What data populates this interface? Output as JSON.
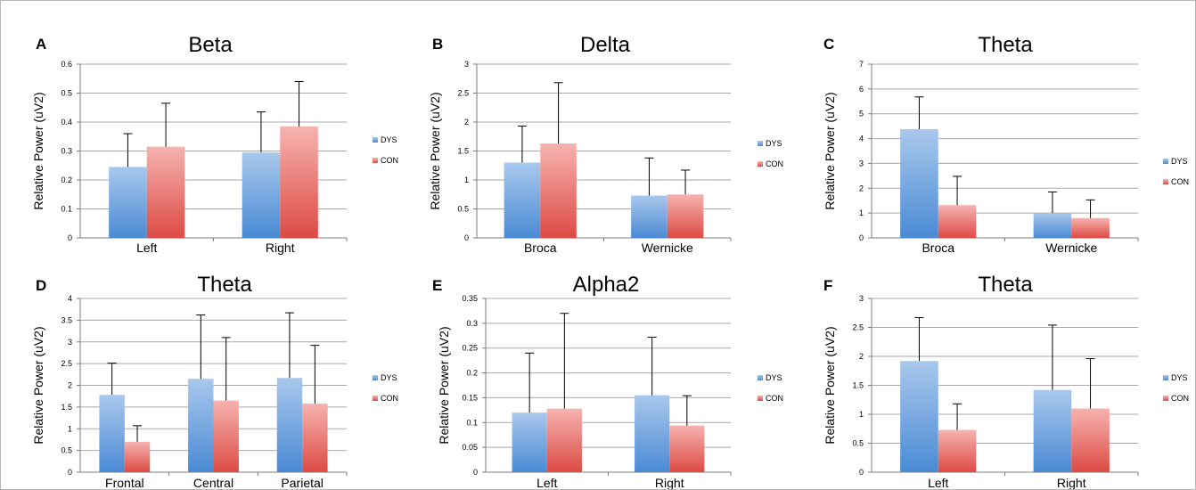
{
  "figure": {
    "chart_data": [
      {
        "panel": "A",
        "type": "bar",
        "title": "Beta",
        "ylabel": "Relative Power (uV2)",
        "xlabel": "",
        "categories": [
          "Left",
          "Right"
        ],
        "ylim": [
          0,
          0.6
        ],
        "yticks": [
          "0",
          "0.1",
          "0.2",
          "0.3",
          "0.4",
          "0.5",
          "0.6"
        ],
        "grid": true,
        "legend_position": "right",
        "series": [
          {
            "name": "DYS",
            "values": [
              0.245,
              0.295
            ],
            "errors": [
              0.115,
              0.14
            ]
          },
          {
            "name": "CON",
            "values": [
              0.315,
              0.385
            ],
            "errors": [
              0.15,
              0.155
            ]
          }
        ]
      },
      {
        "panel": "B",
        "type": "bar",
        "title": "Delta",
        "ylabel": "Relative Power (uV2)",
        "xlabel": "",
        "categories": [
          "Broca",
          "Wernicke"
        ],
        "ylim": [
          0,
          3
        ],
        "yticks": [
          "0",
          "0.5",
          "1",
          "1.5",
          "2",
          "2.5",
          "3"
        ],
        "grid": true,
        "legend_position": "right",
        "series": [
          {
            "name": "DYS",
            "values": [
              1.3,
              0.73
            ],
            "errors": [
              0.63,
              0.65
            ]
          },
          {
            "name": "CON",
            "values": [
              1.63,
              0.75
            ],
            "errors": [
              1.05,
              0.42
            ]
          }
        ]
      },
      {
        "panel": "C",
        "type": "bar",
        "title": "Theta",
        "ylabel": "Relative Power (uV2)",
        "xlabel": "",
        "categories": [
          "Broca",
          "Wernicke"
        ],
        "ylim": [
          0,
          7
        ],
        "yticks": [
          "0",
          "1",
          "2",
          "3",
          "4",
          "5",
          "6",
          "7"
        ],
        "grid": true,
        "legend_position": "right",
        "series": [
          {
            "name": "DYS",
            "values": [
              4.38,
              1.0
            ],
            "errors": [
              1.3,
              0.85
            ]
          },
          {
            "name": "CON",
            "values": [
              1.32,
              0.8
            ],
            "errors": [
              1.16,
              0.73
            ]
          }
        ]
      },
      {
        "panel": "D",
        "type": "bar",
        "title": "Theta",
        "ylabel": "Relative Power (uV2)",
        "xlabel": "",
        "categories": [
          "Frontal",
          "Central",
          "Parietal"
        ],
        "ylim": [
          0,
          4
        ],
        "yticks": [
          "0",
          "0.5",
          "1",
          "1.5",
          "2",
          "2.5",
          "3",
          "3.5",
          "4"
        ],
        "grid": true,
        "legend_position": "right",
        "series": [
          {
            "name": "DYS",
            "values": [
              1.78,
              2.15,
              2.17
            ],
            "errors": [
              0.73,
              1.47,
              1.5
            ]
          },
          {
            "name": "CON",
            "values": [
              0.7,
              1.65,
              1.58
            ],
            "errors": [
              0.37,
              1.45,
              1.34
            ]
          }
        ]
      },
      {
        "panel": "E",
        "type": "bar",
        "title": "Alpha2",
        "ylabel": "Relative Power (uV2)",
        "xlabel": "",
        "categories": [
          "Left",
          "Right"
        ],
        "ylim": [
          0,
          0.35
        ],
        "yticks": [
          "0",
          "0.05",
          "0.1",
          "0.15",
          "0.2",
          "0.25",
          "0.3",
          "0.35"
        ],
        "grid": true,
        "legend_position": "right",
        "series": [
          {
            "name": "DYS",
            "values": [
              0.12,
              0.155
            ],
            "errors": [
              0.12,
              0.117
            ]
          },
          {
            "name": "CON",
            "values": [
              0.128,
              0.094
            ],
            "errors": [
              0.192,
              0.06
            ]
          }
        ]
      },
      {
        "panel": "F",
        "type": "bar",
        "title": "Theta",
        "ylabel": "Relative Power (uV2)",
        "xlabel": "",
        "categories": [
          "Left",
          "Right"
        ],
        "ylim": [
          0,
          3
        ],
        "yticks": [
          "0",
          "0.5",
          "1",
          "1.5",
          "2",
          "2.5",
          "3"
        ],
        "grid": true,
        "legend_position": "right",
        "series": [
          {
            "name": "DYS",
            "values": [
              1.92,
              1.42
            ],
            "errors": [
              0.75,
              1.12
            ]
          },
          {
            "name": "CON",
            "values": [
              0.73,
              1.1
            ],
            "errors": [
              0.45,
              0.86
            ]
          }
        ]
      }
    ],
    "colors": {
      "dys_light": "#a9c8ec",
      "dys_dark": "#4a8ad4",
      "con_light": "#f6b3b0",
      "con_dark": "#dd4a44",
      "grid": "#a9a9a9",
      "axis": "#7d7d7d",
      "text": "#000000"
    }
  }
}
